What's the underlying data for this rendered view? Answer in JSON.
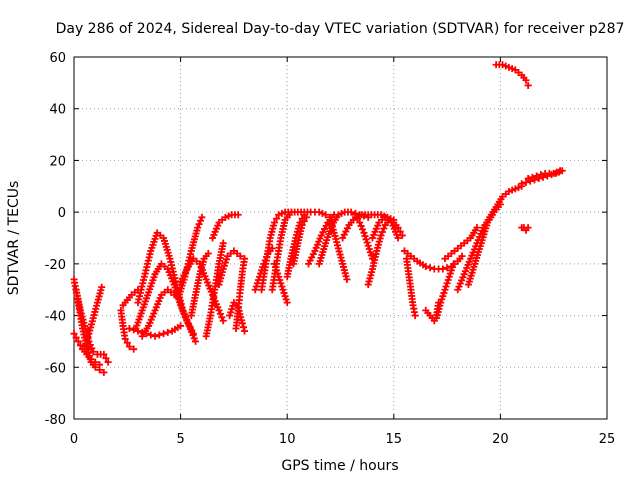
{
  "chart_data": {
    "type": "scatter",
    "title": "Day 286 of 2024, Sidereal Day-to-day VTEC variation (SDTVAR) for receiver p287",
    "xlabel": "GPS time / hours",
    "ylabel": "SDTVAR / TECUs",
    "xlim": [
      0,
      25
    ],
    "ylim": [
      -80,
      60
    ],
    "xticks": [
      0,
      5,
      10,
      15,
      20,
      25
    ],
    "yticks": [
      -80,
      -60,
      -40,
      -20,
      0,
      20,
      40,
      60
    ],
    "grid": true,
    "marker": "+",
    "colors": {
      "series": "#ff0000",
      "grid": "#a0a0a0",
      "axis": "#000000"
    },
    "series": [
      {
        "name": "arc-01",
        "points": [
          [
            0.0,
            -26
          ],
          [
            0.2,
            -35
          ],
          [
            0.4,
            -45
          ],
          [
            0.6,
            -52
          ],
          [
            0.8,
            -58
          ],
          [
            1.0,
            -60
          ],
          [
            1.2,
            -61
          ],
          [
            1.4,
            -62
          ]
        ]
      },
      {
        "name": "arc-02",
        "points": [
          [
            0.0,
            -47
          ],
          [
            0.2,
            -50
          ],
          [
            0.4,
            -53
          ],
          [
            0.6,
            -55
          ],
          [
            0.8,
            -57
          ],
          [
            1.0,
            -58
          ],
          [
            1.2,
            -59
          ]
        ]
      },
      {
        "name": "arc-03",
        "points": [
          [
            0.1,
            -30
          ],
          [
            0.3,
            -38
          ],
          [
            0.5,
            -44
          ],
          [
            0.7,
            -50
          ],
          [
            0.9,
            -54
          ],
          [
            1.1,
            -55
          ],
          [
            1.4,
            -55
          ],
          [
            1.6,
            -58
          ]
        ]
      },
      {
        "name": "arc-04",
        "points": [
          [
            0.5,
            -52
          ],
          [
            0.7,
            -47
          ],
          [
            0.9,
            -41
          ],
          [
            1.1,
            -35
          ],
          [
            1.3,
            -29
          ]
        ]
      },
      {
        "name": "arc-05",
        "points": [
          [
            2.2,
            -38
          ],
          [
            2.3,
            -44
          ],
          [
            2.4,
            -49
          ],
          [
            2.6,
            -52
          ],
          [
            2.8,
            -53
          ]
        ]
      },
      {
        "name": "arc-06",
        "points": [
          [
            2.3,
            -36
          ],
          [
            2.5,
            -34
          ],
          [
            2.7,
            -32
          ],
          [
            3.0,
            -30
          ]
        ]
      },
      {
        "name": "arc-07",
        "points": [
          [
            2.6,
            -45
          ],
          [
            3.0,
            -46
          ],
          [
            3.4,
            -47
          ],
          [
            3.8,
            -48
          ],
          [
            4.2,
            -47
          ],
          [
            4.6,
            -46
          ],
          [
            5.0,
            -44
          ]
        ]
      },
      {
        "name": "arc-08",
        "points": [
          [
            3.0,
            -35
          ],
          [
            3.3,
            -25
          ],
          [
            3.6,
            -15
          ],
          [
            3.9,
            -8
          ],
          [
            4.2,
            -10
          ],
          [
            4.5,
            -18
          ],
          [
            4.8,
            -28
          ],
          [
            5.1,
            -38
          ],
          [
            5.4,
            -44
          ],
          [
            5.7,
            -50
          ]
        ]
      },
      {
        "name": "arc-09",
        "points": [
          [
            2.9,
            -45
          ],
          [
            3.2,
            -38
          ],
          [
            3.5,
            -31
          ],
          [
            3.8,
            -24
          ],
          [
            4.1,
            -20
          ],
          [
            4.4,
            -22
          ],
          [
            4.7,
            -28
          ],
          [
            5.0,
            -36
          ],
          [
            5.3,
            -42
          ],
          [
            5.6,
            -47
          ]
        ]
      },
      {
        "name": "arc-10",
        "points": [
          [
            3.2,
            -48
          ],
          [
            3.5,
            -44
          ],
          [
            3.8,
            -38
          ],
          [
            4.1,
            -32
          ],
          [
            4.4,
            -30
          ],
          [
            4.7,
            -32
          ]
        ]
      },
      {
        "name": "arc-11",
        "points": [
          [
            4.9,
            -33
          ],
          [
            5.2,
            -25
          ],
          [
            5.5,
            -15
          ],
          [
            5.8,
            -6
          ],
          [
            6.0,
            -2
          ]
        ]
      },
      {
        "name": "arc-12",
        "points": [
          [
            5.0,
            -27
          ],
          [
            5.3,
            -22
          ],
          [
            5.6,
            -18
          ],
          [
            5.9,
            -20
          ],
          [
            6.2,
            -26
          ],
          [
            6.5,
            -32
          ],
          [
            6.8,
            -38
          ],
          [
            7.0,
            -42
          ]
        ]
      },
      {
        "name": "arc-13",
        "points": [
          [
            5.5,
            -40
          ],
          [
            5.7,
            -32
          ],
          [
            5.9,
            -24
          ],
          [
            6.1,
            -18
          ],
          [
            6.3,
            -16
          ]
        ]
      },
      {
        "name": "arc-14",
        "points": [
          [
            6.2,
            -48
          ],
          [
            6.4,
            -40
          ],
          [
            6.6,
            -30
          ],
          [
            6.8,
            -20
          ],
          [
            7.0,
            -12
          ]
        ]
      },
      {
        "name": "arc-15",
        "points": [
          [
            6.5,
            -10
          ],
          [
            6.8,
            -4
          ],
          [
            7.1,
            -2
          ],
          [
            7.4,
            -1
          ],
          [
            7.7,
            -1
          ]
        ]
      },
      {
        "name": "arc-16",
        "points": [
          [
            6.8,
            -28
          ],
          [
            7.0,
            -22
          ],
          [
            7.2,
            -17
          ],
          [
            7.5,
            -15
          ],
          [
            7.8,
            -17
          ]
        ]
      },
      {
        "name": "arc-17",
        "points": [
          [
            7.3,
            -40
          ],
          [
            7.5,
            -35
          ],
          [
            7.7,
            -37
          ],
          [
            7.9,
            -43
          ],
          [
            8.0,
            -46
          ]
        ]
      },
      {
        "name": "arc-18",
        "points": [
          [
            7.6,
            -45
          ],
          [
            7.7,
            -38
          ],
          [
            7.8,
            -30
          ],
          [
            7.9,
            -23
          ],
          [
            8.0,
            -18
          ]
        ]
      },
      {
        "name": "arc-19",
        "points": [
          [
            8.5,
            -30
          ],
          [
            8.7,
            -25
          ],
          [
            8.9,
            -20
          ],
          [
            9.1,
            -16
          ],
          [
            9.3,
            -14
          ]
        ]
      },
      {
        "name": "arc-20",
        "points": [
          [
            8.8,
            -30
          ],
          [
            9.0,
            -20
          ],
          [
            9.2,
            -10
          ],
          [
            9.4,
            -4
          ],
          [
            9.6,
            -1
          ],
          [
            9.9,
            0
          ],
          [
            10.2,
            0
          ],
          [
            10.5,
            0
          ],
          [
            10.8,
            0
          ],
          [
            11.1,
            0
          ],
          [
            11.5,
            0
          ],
          [
            11.8,
            -1
          ]
        ]
      },
      {
        "name": "arc-21",
        "points": [
          [
            9.3,
            -30
          ],
          [
            9.5,
            -20
          ],
          [
            9.7,
            -10
          ],
          [
            9.9,
            -3
          ],
          [
            10.1,
            -1
          ]
        ]
      },
      {
        "name": "arc-22",
        "points": [
          [
            9.4,
            -20
          ],
          [
            9.6,
            -25
          ],
          [
            9.8,
            -30
          ],
          [
            10.0,
            -35
          ]
        ]
      },
      {
        "name": "arc-23",
        "points": [
          [
            10.0,
            -25
          ],
          [
            10.2,
            -17
          ],
          [
            10.4,
            -10
          ],
          [
            10.6,
            -4
          ],
          [
            10.8,
            -1
          ]
        ]
      },
      {
        "name": "arc-24",
        "points": [
          [
            10.3,
            -20
          ],
          [
            10.5,
            -12
          ],
          [
            10.7,
            -5
          ],
          [
            10.9,
            -2
          ]
        ]
      },
      {
        "name": "arc-25",
        "points": [
          [
            11.0,
            -20
          ],
          [
            11.3,
            -15
          ],
          [
            11.6,
            -9
          ],
          [
            11.9,
            -4
          ],
          [
            12.2,
            -1
          ]
        ]
      },
      {
        "name": "arc-26",
        "points": [
          [
            11.5,
            -20
          ],
          [
            11.8,
            -12
          ],
          [
            12.1,
            -5
          ],
          [
            12.4,
            -1
          ],
          [
            12.7,
            0
          ],
          [
            13.0,
            0
          ],
          [
            13.4,
            -1
          ],
          [
            13.8,
            -2
          ]
        ]
      },
      {
        "name": "arc-27",
        "points": [
          [
            12.0,
            -2
          ],
          [
            12.2,
            -8
          ],
          [
            12.4,
            -14
          ],
          [
            12.6,
            -20
          ],
          [
            12.8,
            -26
          ]
        ]
      },
      {
        "name": "arc-28",
        "points": [
          [
            12.6,
            -10
          ],
          [
            12.9,
            -5
          ],
          [
            13.2,
            -2
          ],
          [
            13.5,
            -1
          ],
          [
            13.8,
            -1
          ],
          [
            14.1,
            -1
          ],
          [
            14.4,
            -1
          ],
          [
            14.7,
            -2
          ],
          [
            15.0,
            -3
          ]
        ]
      },
      {
        "name": "arc-29",
        "points": [
          [
            13.2,
            -1
          ],
          [
            13.4,
            -4
          ],
          [
            13.6,
            -8
          ],
          [
            13.8,
            -13
          ],
          [
            14.0,
            -18
          ]
        ]
      },
      {
        "name": "arc-30",
        "points": [
          [
            14.0,
            -10
          ],
          [
            14.3,
            -4
          ],
          [
            14.6,
            -2
          ],
          [
            14.9,
            -4
          ],
          [
            15.2,
            -10
          ]
        ]
      },
      {
        "name": "arc-31",
        "points": [
          [
            13.8,
            -28
          ],
          [
            14.0,
            -22
          ],
          [
            14.2,
            -15
          ],
          [
            14.4,
            -9
          ],
          [
            14.6,
            -5
          ],
          [
            14.8,
            -3
          ],
          [
            15.0,
            -4
          ],
          [
            15.2,
            -6
          ],
          [
            15.4,
            -9
          ]
        ]
      },
      {
        "name": "arc-32",
        "points": [
          [
            15.5,
            -15
          ],
          [
            15.8,
            -17
          ],
          [
            16.1,
            -19
          ],
          [
            16.5,
            -21
          ],
          [
            16.9,
            -22
          ],
          [
            17.3,
            -22
          ],
          [
            17.7,
            -21
          ],
          [
            18.0,
            -19
          ],
          [
            18.2,
            -17
          ]
        ]
      },
      {
        "name": "arc-33",
        "points": [
          [
            15.6,
            -18
          ],
          [
            15.7,
            -24
          ],
          [
            15.8,
            -30
          ],
          [
            15.9,
            -36
          ],
          [
            16.0,
            -40
          ]
        ]
      },
      {
        "name": "arc-34",
        "points": [
          [
            16.5,
            -38
          ],
          [
            16.7,
            -40
          ],
          [
            16.9,
            -42
          ],
          [
            17.0,
            -40
          ],
          [
            17.1,
            -35
          ]
        ]
      },
      {
        "name": "arc-35",
        "points": [
          [
            17.0,
            -41
          ],
          [
            17.2,
            -35
          ],
          [
            17.4,
            -30
          ],
          [
            17.6,
            -25
          ],
          [
            17.8,
            -20
          ]
        ]
      },
      {
        "name": "arc-36",
        "points": [
          [
            17.4,
            -18
          ],
          [
            17.7,
            -16
          ],
          [
            18.0,
            -14
          ],
          [
            18.3,
            -12
          ],
          [
            18.6,
            -10
          ],
          [
            18.9,
            -6
          ]
        ]
      },
      {
        "name": "arc-37",
        "points": [
          [
            18.0,
            -30
          ],
          [
            18.3,
            -24
          ],
          [
            18.6,
            -18
          ],
          [
            18.9,
            -12
          ],
          [
            19.2,
            -6
          ],
          [
            19.5,
            -2
          ],
          [
            19.8,
            2
          ],
          [
            20.1,
            6
          ],
          [
            20.4,
            8
          ],
          [
            20.7,
            9
          ],
          [
            21.0,
            10
          ]
        ]
      },
      {
        "name": "arc-38",
        "points": [
          [
            18.5,
            -28
          ],
          [
            18.8,
            -20
          ],
          [
            19.1,
            -12
          ],
          [
            19.4,
            -4
          ],
          [
            19.7,
            0
          ],
          [
            20.0,
            3
          ]
        ]
      },
      {
        "name": "arc-39",
        "points": [
          [
            19.8,
            57
          ],
          [
            20.1,
            57
          ],
          [
            20.4,
            56
          ],
          [
            20.7,
            55
          ],
          [
            21.0,
            53
          ],
          [
            21.2,
            51
          ],
          [
            21.3,
            49
          ]
        ]
      },
      {
        "name": "arc-40",
        "points": [
          [
            21.0,
            -6
          ],
          [
            21.1,
            -6
          ],
          [
            21.2,
            -7
          ],
          [
            21.3,
            -6
          ]
        ]
      },
      {
        "name": "arc-41",
        "points": [
          [
            21.0,
            11
          ],
          [
            21.4,
            12
          ],
          [
            21.8,
            13
          ],
          [
            22.2,
            14
          ],
          [
            22.6,
            15
          ],
          [
            22.9,
            16
          ]
        ]
      },
      {
        "name": "arc-42",
        "points": [
          [
            21.3,
            13
          ],
          [
            21.7,
            14
          ],
          [
            22.1,
            15
          ],
          [
            22.5,
            15
          ],
          [
            22.8,
            16
          ]
        ]
      }
    ]
  }
}
